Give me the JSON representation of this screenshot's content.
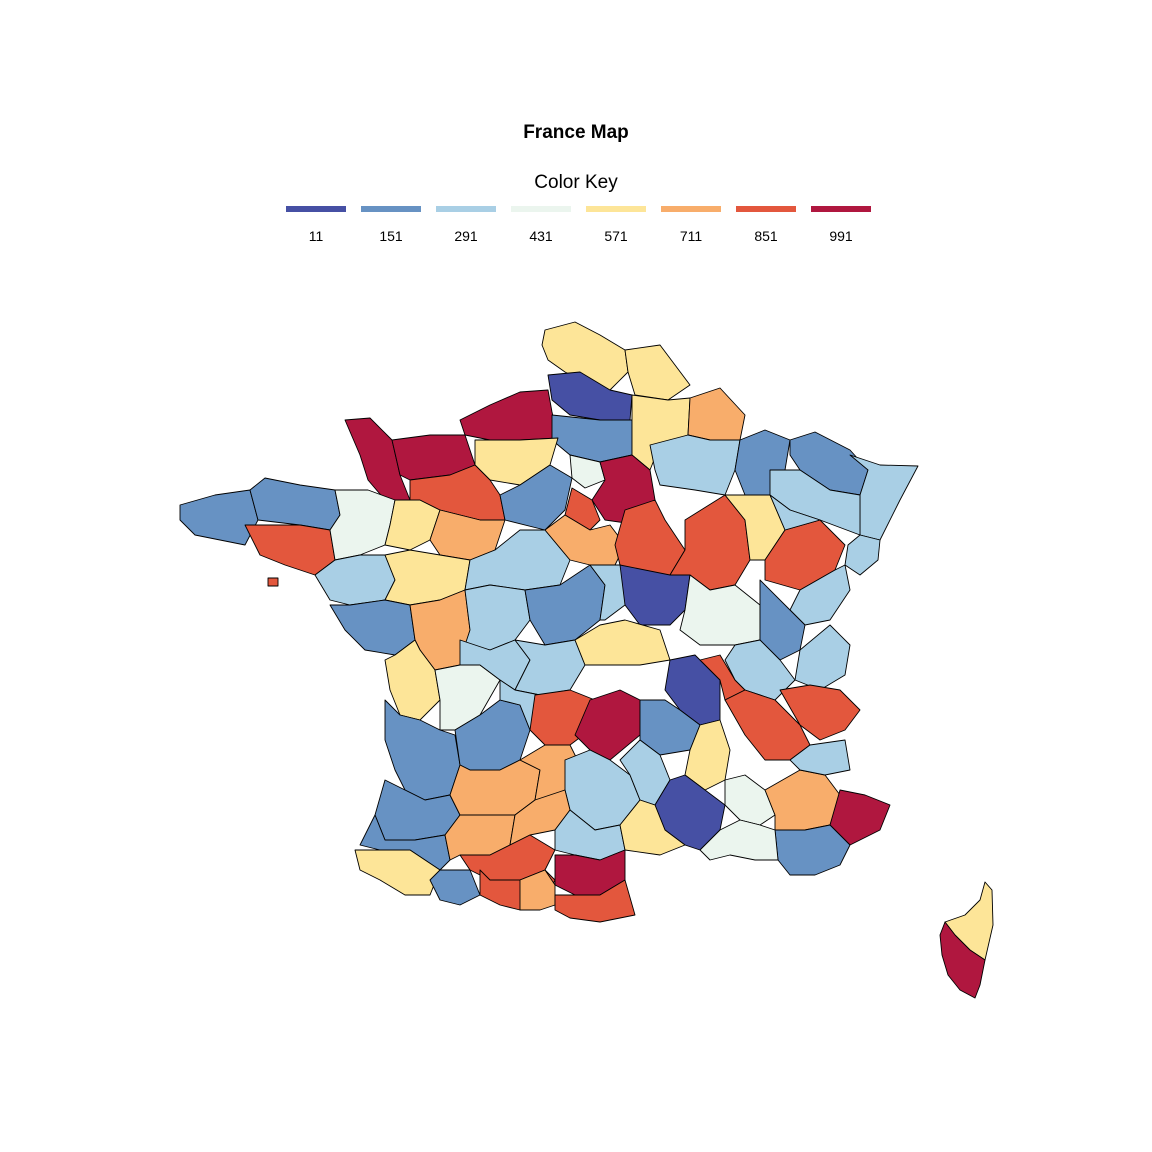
{
  "title": "France Map",
  "legend": {
    "title": "Color Key",
    "items": [
      {
        "label": "11",
        "color": "#4650a4"
      },
      {
        "label": "151",
        "color": "#6792c3"
      },
      {
        "label": "291",
        "color": "#a9cfe5"
      },
      {
        "label": "431",
        "color": "#ebf5ee"
      },
      {
        "label": "571",
        "color": "#fde598"
      },
      {
        "label": "711",
        "color": "#f8ad6b"
      },
      {
        "label": "851",
        "color": "#e3573d"
      },
      {
        "label": "991",
        "color": "#b0173f"
      }
    ]
  },
  "chart_data": {
    "type": "choropleth",
    "region": "France (departments)",
    "color_scale": [
      "#4650a4",
      "#6792c3",
      "#a9cfe5",
      "#ebf5ee",
      "#fde598",
      "#f8ad6b",
      "#e3573d",
      "#b0173f"
    ],
    "scale_breaks": [
      11,
      151,
      291,
      431,
      571,
      711,
      851,
      991
    ]
  }
}
